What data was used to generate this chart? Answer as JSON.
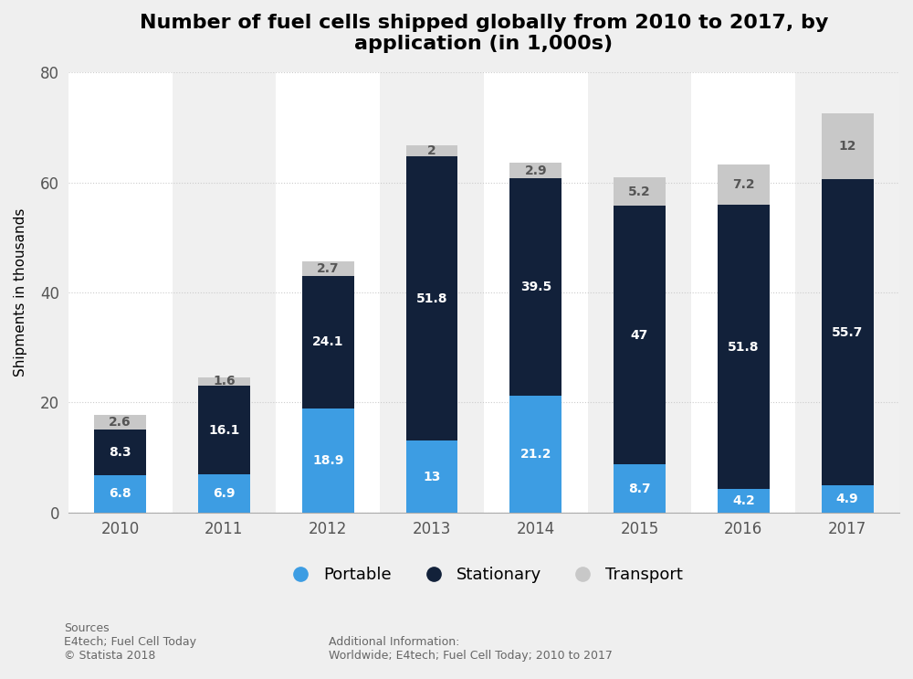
{
  "title": "Number of fuel cells shipped globally from 2010 to 2017, by\napplication (in 1,000s)",
  "years": [
    "2010",
    "2011",
    "2012",
    "2013",
    "2014",
    "2015",
    "2016",
    "2017"
  ],
  "portable": [
    6.8,
    6.9,
    18.9,
    13,
    21.2,
    8.7,
    4.2,
    4.9
  ],
  "stationary": [
    8.3,
    16.1,
    24.1,
    51.8,
    39.5,
    47,
    51.8,
    55.7
  ],
  "transport": [
    2.6,
    1.6,
    2.7,
    2,
    2.9,
    5.2,
    7.2,
    12
  ],
  "portable_labels": [
    "6.8",
    "6.9",
    "18.9",
    "13",
    "21.2",
    "8.7",
    "4.2",
    "4.9"
  ],
  "stationary_labels": [
    "8.3",
    "16.1",
    "24.1",
    "51.8",
    "39.5",
    "47",
    "51.8",
    "55.7"
  ],
  "transport_labels": [
    "2.6",
    "1.6",
    "2.7",
    "2",
    "2.9",
    "5.2",
    "7.2",
    "12"
  ],
  "portable_color": "#3d9de3",
  "stationary_color": "#12213a",
  "transport_color": "#c8c8c8",
  "col_bg_light": "#f0f0f0",
  "col_bg_white": "#ffffff",
  "ylabel": "Shipments in thousands",
  "ylim": [
    0,
    80
  ],
  "yticks": [
    0,
    20,
    40,
    60,
    80
  ],
  "background_color": "#efefef",
  "title_fontsize": 16,
  "sources_text": "Sources\nE4tech; Fuel Cell Today\n© Statista 2018",
  "additional_text": "Additional Information:\nWorldwide; E4tech; Fuel Cell Today; 2010 to 2017"
}
